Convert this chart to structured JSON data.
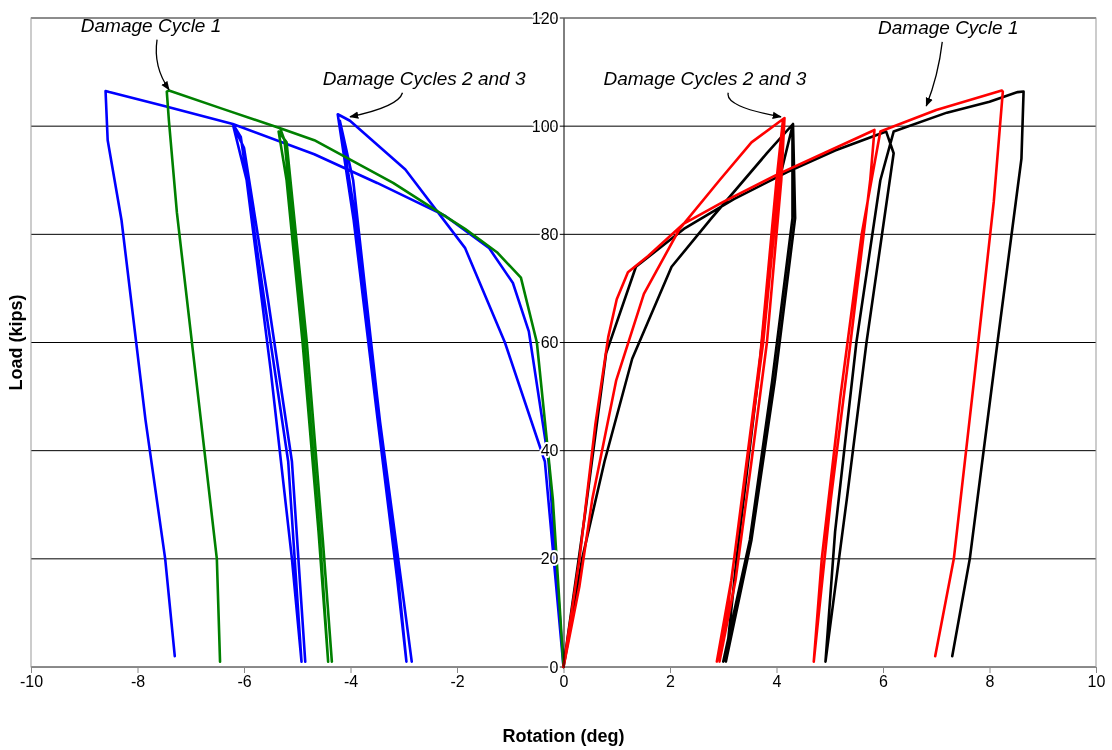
{
  "chart_data": {
    "type": "line",
    "xlabel": "Rotation (deg)",
    "ylabel": "Load (kips)",
    "xlim": [
      -10,
      10
    ],
    "xticks": [
      -10,
      -8,
      -6,
      -4,
      -2,
      0,
      2,
      4,
      6,
      8,
      10
    ],
    "ylim": [
      0,
      120
    ],
    "yticks": [
      0,
      20,
      40,
      60,
      80,
      100,
      120
    ],
    "grid": "y",
    "marker": "none",
    "line_style": "solid",
    "series": [
      {
        "color": "#0000ff",
        "x": [
          0,
          -0.28,
          -0.65,
          -0.95,
          -1.4,
          -2.22,
          -3.5,
          -4.68,
          -6.21,
          -7.48,
          -8.53,
          -8.6,
          -8.56,
          -8.3,
          -7.85,
          -7.48,
          -7.3,
          null,
          -6.21,
          -6.06,
          -5.62,
          -5.17,
          -4.92,
          -5.1,
          -5.5,
          -5.95,
          -6.2,
          -6.0,
          -5.55,
          -5.1,
          -4.85,
          null,
          0,
          -0.35,
          -1.1,
          -1.85,
          -2.97,
          -4.01,
          -4.24,
          -3.94,
          -3.49,
          -3.12,
          -2.95,
          -3.1,
          -3.5,
          -3.95,
          -4.2,
          -3.9,
          -3.45,
          -3.05,
          -2.85
        ],
        "values": [
          0,
          38,
          62,
          71,
          77.5,
          83.4,
          89.5,
          94.8,
          100.4,
          103.7,
          106.3,
          106.5,
          97.4,
          82.6,
          45.7,
          20,
          2,
          null,
          100.4,
          98,
          68,
          38,
          1,
          20,
          55,
          90,
          100,
          96,
          68,
          38,
          1,
          null,
          0,
          38,
          60,
          77.5,
          92,
          101,
          102.2,
          82.6,
          45.7,
          16,
          1,
          16,
          50,
          90,
          101,
          82.6,
          45.7,
          16,
          1
        ]
      },
      {
        "color": "#008000",
        "x": [
          0,
          -0.2,
          -0.5,
          -0.8,
          -1.25,
          -1.85,
          -3.2,
          -4.68,
          -5.32,
          -6.4,
          -7.41,
          -7.45,
          -7.41,
          -7.26,
          -6.81,
          -6.51,
          -6.45,
          null,
          -5.32,
          -5.24,
          -4.87,
          -4.57,
          -4.42,
          -4.6,
          -4.9,
          -5.2,
          -5.35,
          -5.2,
          -4.82,
          -4.52,
          -4.35
        ],
        "values": [
          0,
          31,
          60,
          72,
          76.7,
          81,
          89.5,
          97.4,
          99.6,
          103.2,
          106.6,
          106.4,
          101,
          84,
          45.7,
          20,
          1,
          null,
          99.6,
          97.4,
          60,
          23.5,
          1,
          25,
          60,
          90,
          99,
          97,
          60,
          23.5,
          1
        ]
      },
      {
        "color": "#000000",
        "x": [
          0,
          0.35,
          0.77,
          1.29,
          2.03,
          2.78,
          3.82,
          4.31,
          4.35,
          3.97,
          3.53,
          3.05,
          3.25,
          3.65,
          4.05,
          4.3,
          4.3,
          3.92,
          3.5,
          3.0,
          null,
          0,
          0.4,
          0.8,
          1.36,
          2.26,
          3.2,
          4.2,
          5.1,
          6.06,
          6.2,
          5.69,
          5.32,
          4.92,
          5.1,
          5.5,
          5.95,
          6.2,
          7.2,
          8.0,
          8.53,
          8.64,
          8.6,
          8.15,
          7.63,
          7.3
        ],
        "values": [
          0,
          20,
          38,
          57,
          74,
          83,
          95,
          100.4,
          83,
          53,
          23.5,
          1,
          20,
          53,
          90,
          100,
          83,
          53,
          23.5,
          1,
          null,
          0,
          28,
          58,
          74,
          81,
          86.5,
          91.5,
          95.5,
          99,
          95,
          60,
          31,
          1,
          25,
          60,
          90,
          99,
          102.5,
          104.5,
          106.3,
          106.4,
          94,
          60,
          20,
          2
        ]
      },
      {
        "color": "#ff0000",
        "x": [
          0,
          0.3,
          0.54,
          0.99,
          1.51,
          2.18,
          2.93,
          3.53,
          4.15,
          4.09,
          3.82,
          3.53,
          3.23,
          2.93,
          3.1,
          3.4,
          3.7,
          4.0,
          4.12,
          4.05,
          3.75,
          3.45,
          3.15,
          2.88,
          null,
          0,
          0.3,
          0.6,
          0.84,
          1.0,
          1.21,
          1.59,
          2.26,
          3.0,
          4.0,
          5.0,
          5.84,
          5.76,
          5.39,
          5.02,
          4.7,
          4.85,
          5.2,
          5.6,
          5.95,
          7.0,
          8.23,
          8.25,
          8.08,
          7.71,
          7.33,
          6.98
        ],
        "values": [
          0,
          15,
          31,
          53,
          69,
          81,
          90,
          97,
          101.5,
          90,
          60,
          38,
          16,
          1,
          12,
          35,
          58,
          90,
          101,
          90,
          60,
          38,
          16,
          1,
          null,
          0,
          20,
          45,
          61,
          68,
          73,
          76,
          82,
          86,
          91,
          95.5,
          99.3,
          90,
          60,
          31,
          1,
          20,
          50,
          80,
          99,
          103,
          106.6,
          106.4,
          86,
          53,
          20,
          2
        ]
      }
    ],
    "annotations": [
      {
        "text": "Damage Cycle 1",
        "x": -7.37,
        "y": 106
      },
      {
        "text": "Damage Cycles 2 and 3",
        "x": -3.97,
        "y": 101
      },
      {
        "text": "Damage Cycles 2 and 3",
        "x": 4.12,
        "y": 101
      },
      {
        "text": "Damage Cycle 1",
        "x": 6.85,
        "y": 103
      }
    ]
  }
}
